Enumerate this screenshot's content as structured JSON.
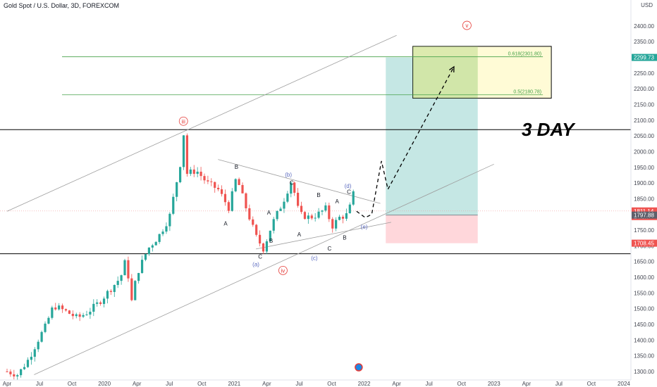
{
  "header": {
    "title": "Gold Spot / U.S. Dollar, 3D, FOREXCOM",
    "currency": "USD"
  },
  "chart_data": {
    "type": "candlestick",
    "symbol": "XAUUSD",
    "timeframe": "3D",
    "ylim": [
      1290,
      2450
    ],
    "yticks": [
      1300,
      1350,
      1400,
      1450,
      1500,
      1550,
      1600,
      1650,
      1700,
      1750,
      1800,
      1850,
      1900,
      1950,
      2000,
      2050,
      2100,
      2150,
      2200,
      2250,
      2300,
      2350,
      2400
    ],
    "x_labels": [
      {
        "t": 0.0,
        "label": "Apr"
      },
      {
        "t": 3.0,
        "label": "Jul"
      },
      {
        "t": 6.0,
        "label": "Oct"
      },
      {
        "t": 9.0,
        "label": "2020"
      },
      {
        "t": 12.0,
        "label": "Apr"
      },
      {
        "t": 15.0,
        "label": "Jul"
      },
      {
        "t": 18.0,
        "label": "Oct"
      },
      {
        "t": 21.0,
        "label": "2021"
      },
      {
        "t": 24.0,
        "label": "Apr"
      },
      {
        "t": 27.0,
        "label": "Jul"
      },
      {
        "t": 30.0,
        "label": "Oct"
      },
      {
        "t": 33.0,
        "label": "2022"
      },
      {
        "t": 36.0,
        "label": "Apr"
      },
      {
        "t": 39.0,
        "label": "Jul"
      },
      {
        "t": 42.0,
        "label": "Oct"
      },
      {
        "t": 45.0,
        "label": "2023"
      },
      {
        "t": 48.0,
        "label": "Apr"
      },
      {
        "t": 51.0,
        "label": "Jul"
      },
      {
        "t": 54.0,
        "label": "Oct"
      },
      {
        "t": 57.0,
        "label": "2024"
      }
    ],
    "price_path": [
      [
        0.0,
        1300
      ],
      [
        1.0,
        1290
      ],
      [
        2.0,
        1340
      ],
      [
        3.0,
        1410
      ],
      [
        3.5,
        1440
      ],
      [
        4.3,
        1510
      ],
      [
        5.5,
        1490
      ],
      [
        6.5,
        1470
      ],
      [
        7.5,
        1490
      ],
      [
        8.5,
        1520
      ],
      [
        9.5,
        1560
      ],
      [
        10.5,
        1600
      ],
      [
        11.0,
        1660
      ],
      [
        11.5,
        1520
      ],
      [
        12.0,
        1610
      ],
      [
        13.0,
        1690
      ],
      [
        14.0,
        1730
      ],
      [
        15.0,
        1790
      ],
      [
        16.0,
        1960
      ],
      [
        16.3,
        2065
      ],
      [
        16.6,
        1930
      ],
      [
        17.5,
        1940
      ],
      [
        18.5,
        1900
      ],
      [
        19.5,
        1880
      ],
      [
        20.5,
        1820
      ],
      [
        21.2,
        1920
      ],
      [
        22.0,
        1830
      ],
      [
        23.0,
        1730
      ],
      [
        23.7,
        1690
      ],
      [
        24.5,
        1770
      ],
      [
        25.5,
        1840
      ],
      [
        26.3,
        1910
      ],
      [
        27.0,
        1800
      ],
      [
        28.0,
        1790
      ],
      [
        28.7,
        1800
      ],
      [
        29.5,
        1820
      ],
      [
        30.0,
        1760
      ],
      [
        30.7,
        1790
      ],
      [
        31.5,
        1800
      ],
      [
        32.0,
        1865
      ],
      [
        32.3,
        1810
      ]
    ],
    "horizontal_levels": [
      2070,
      1675
    ],
    "current_line": 1811,
    "channel_upper": [
      [
        0,
        1810
      ],
      [
        36.0,
        2370
      ]
    ],
    "channel_lower": [
      [
        2.5,
        1290
      ],
      [
        45.0,
        1960
      ]
    ],
    "triangle_upper": [
      [
        19.5,
        1975
      ],
      [
        34.5,
        1835
      ]
    ],
    "triangle_lower": [
      [
        23.0,
        1690
      ],
      [
        35.5,
        1775
      ]
    ],
    "fib_levels": [
      {
        "price": 2301.8,
        "label": "0.618(2301.80)"
      },
      {
        "price": 2180.78,
        "label": "0.5(2180.78)"
      }
    ],
    "fib_box": {
      "t0": 37.5,
      "t1": 50.3,
      "p0": 2170,
      "p1": 2335
    },
    "position": {
      "t0": 35.0,
      "t1": 43.5,
      "entry": 1797.88,
      "target": 2299.73,
      "stop": 1708.45
    },
    "projection": [
      [
        32.3,
        1810
      ],
      [
        33.1,
        1790
      ],
      [
        33.7,
        1800
      ],
      [
        34.6,
        1970
      ],
      [
        35.2,
        1880
      ],
      [
        41.3,
        2270
      ]
    ],
    "wave_labels": [
      {
        "t": 16.3,
        "p": 2090,
        "text": "iii",
        "style": "red-circle"
      },
      {
        "t": 42.5,
        "p": 2395,
        "text": "v",
        "style": "red-circle"
      },
      {
        "t": 25.5,
        "p": 1615,
        "text": "iv",
        "style": "red-circle"
      },
      {
        "t": 23.0,
        "p": 1635,
        "text": "(a)",
        "style": "purple"
      },
      {
        "t": 26.0,
        "p": 1920,
        "text": "(b)",
        "style": "purple"
      },
      {
        "t": 28.4,
        "p": 1655,
        "text": "(c)",
        "style": "purple"
      },
      {
        "t": 31.5,
        "p": 1885,
        "text": "(d)",
        "style": "purple"
      },
      {
        "t": 33.0,
        "p": 1755,
        "text": "(e)",
        "style": "purple"
      },
      {
        "t": 21.2,
        "p": 1945,
        "text": "B",
        "style": "small"
      },
      {
        "t": 20.2,
        "p": 1765,
        "text": "A",
        "style": "small"
      },
      {
        "t": 23.4,
        "p": 1660,
        "text": "C",
        "style": "small"
      },
      {
        "t": 24.2,
        "p": 1800,
        "text": "A",
        "style": "small"
      },
      {
        "t": 24.4,
        "p": 1710,
        "text": "B",
        "style": "small"
      },
      {
        "t": 26.3,
        "p": 1895,
        "text": "C",
        "style": "small"
      },
      {
        "t": 27.0,
        "p": 1730,
        "text": "A",
        "style": "small"
      },
      {
        "t": 28.8,
        "p": 1855,
        "text": "B",
        "style": "small"
      },
      {
        "t": 29.8,
        "p": 1685,
        "text": "C",
        "style": "small"
      },
      {
        "t": 30.5,
        "p": 1835,
        "text": "A",
        "style": "small"
      },
      {
        "t": 31.2,
        "p": 1720,
        "text": "B",
        "style": "small"
      },
      {
        "t": 31.6,
        "p": 1865,
        "text": "C",
        "style": "small"
      }
    ],
    "annotation": "3 DAY",
    "price_tags": [
      {
        "price": 2299.73,
        "label": "2299.73",
        "color": "#26a69a"
      },
      {
        "price": 1811.14,
        "label": "1811.14",
        "sub": "14:5h",
        "color": "#ef5350"
      },
      {
        "price": 1797.88,
        "label": "1797.88",
        "color": "#5d606b"
      },
      {
        "price": 1708.45,
        "label": "1708.45",
        "color": "#ef5350"
      }
    ],
    "colors": {
      "up": "#26a69a",
      "down": "#ef5350",
      "fib": "#43a047",
      "wave_red": "#e53935",
      "wave_purple": "#5c6bc0",
      "profit_zone": "#b2dfdb",
      "loss_zone": "#ffcdd2",
      "fib_box": "#fff9c4"
    }
  }
}
